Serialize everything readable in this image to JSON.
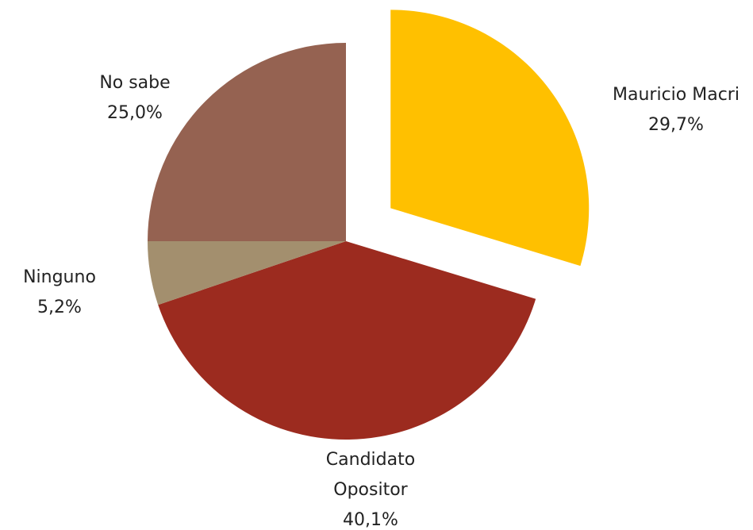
{
  "chart_data": {
    "type": "pie",
    "categories": [
      "Mauricio Macri",
      "Candidato Opositor",
      "Ninguno",
      "No sabe"
    ],
    "values": [
      29.7,
      40.1,
      5.2,
      25.0
    ],
    "value_labels": [
      "29,7%",
      "40,1%",
      "5,2%",
      "25,0%"
    ],
    "colors": [
      "#FFC000",
      "#9C2B1F",
      "#A38F6E",
      "#956251"
    ],
    "exploded": [
      0
    ]
  }
}
